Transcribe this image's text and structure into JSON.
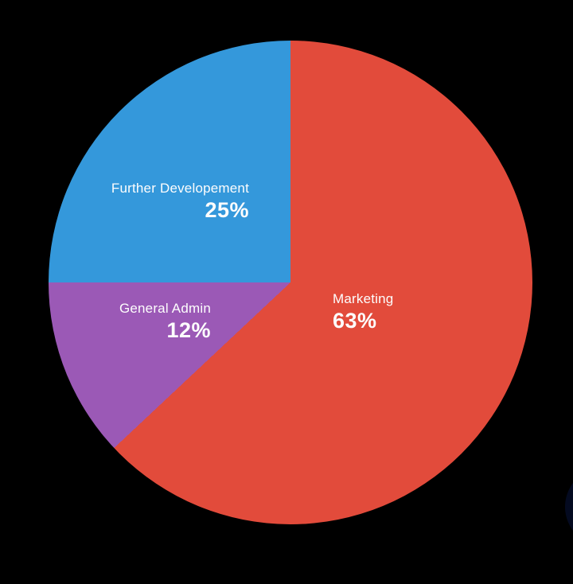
{
  "chart_data": {
    "type": "pie",
    "title": "",
    "background": "#000000",
    "text_color": "#fdfdfd",
    "direction": "clockwise",
    "start_angle_deg": 0,
    "legend": "none",
    "labels_position": "inside",
    "slices": [
      {
        "label": "Marketing",
        "value": 63,
        "percent_text": "63%",
        "color": "#e24b3b"
      },
      {
        "label": "General Admin",
        "value": 12,
        "percent_text": "12%",
        "color": "#9b59b6"
      },
      {
        "label": "Further Developement",
        "value": 25,
        "percent_text": "25%",
        "color": "#3498db"
      }
    ]
  },
  "overlay": {
    "fab_color": "#2a56c6"
  }
}
